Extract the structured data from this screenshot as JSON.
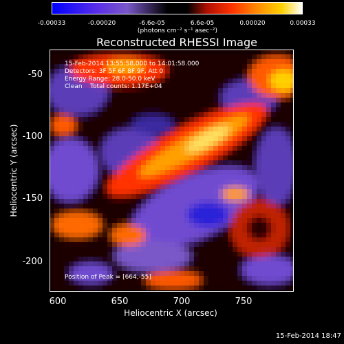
{
  "colorbar": {
    "ticks": [
      "-0.00033",
      "-0.00020",
      "-6.6e-05",
      "6.6e-05",
      "0.00020",
      "0.00033"
    ],
    "units": "(photons cm⁻² s⁻¹ asec⁻²)"
  },
  "title": "Reconstructed RHESSI Image",
  "info": {
    "time_range": "15-Feb-2014 13:55:58.000 to 14:01:58.000",
    "detectors": "Detectors: 3F 5F 6F 8F 9F, Att 0",
    "energy": "Energy Range: 28.0-50.0 keV",
    "clean_line": "Clean    Total counts: 1.17E+04",
    "peak": "Position of Peak = [664,-55]"
  },
  "axes": {
    "xlabel": "Heliocentric X (arcsec)",
    "ylabel": "Heliocentric Y (arcsec)",
    "xticks": [
      "600",
      "650",
      "700",
      "750"
    ],
    "yticks": [
      "-50",
      "-100",
      "-150",
      "-200"
    ],
    "xlim": [
      598,
      788
    ],
    "ylim": [
      -225,
      -35
    ]
  },
  "timestamp": "15-Feb-2014 18:47",
  "colors": {
    "strong_negative": "#0000ff",
    "negative": "#6f4cd0",
    "zero": "#000000",
    "positive": "#ff3300",
    "strong_positive": "#ffffff"
  }
}
